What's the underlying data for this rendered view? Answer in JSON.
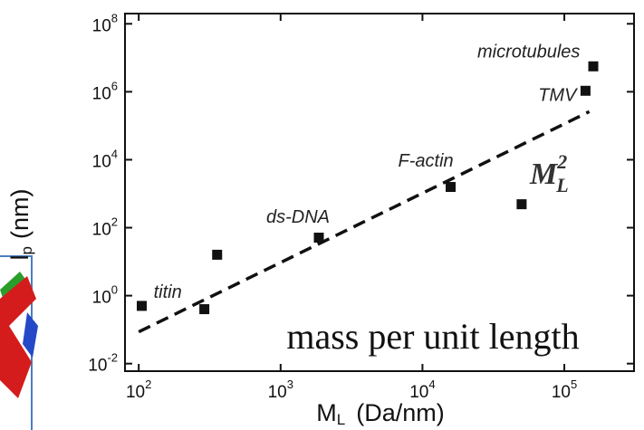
{
  "chart_data": {
    "type": "scatter",
    "log_x": true,
    "log_y": true,
    "color": "#111111",
    "xlim": [
      80,
      310000
    ],
    "ylim": [
      0.006,
      200000000
    ],
    "xticks": [
      {
        "value": 100,
        "label": "10",
        "exp": "2"
      },
      {
        "value": 1000,
        "label": "10",
        "exp": "3"
      },
      {
        "value": 10000,
        "label": "10",
        "exp": "4"
      },
      {
        "value": 100000,
        "label": "10",
        "exp": "5"
      }
    ],
    "yticks": [
      {
        "value": 0.01,
        "label": "10",
        "exp": "-2"
      },
      {
        "value": 1,
        "label": "10",
        "exp": "0"
      },
      {
        "value": 100,
        "label": "10",
        "exp": "2"
      },
      {
        "value": 10000,
        "label": "10",
        "exp": "4"
      },
      {
        "value": 1000000,
        "label": "10",
        "exp": "6"
      },
      {
        "value": 100000000,
        "label": "10",
        "exp": "8"
      }
    ],
    "xlabel": {
      "main": "M",
      "sub": "L",
      "unit": "(Da/nm)"
    },
    "ylabel": {
      "main": "l",
      "sub": "p",
      "unit": "(nm)"
    },
    "x": [
      105,
      290,
      357,
      1860,
      15800,
      50000,
      141000,
      160000
    ],
    "values": [
      0.5,
      0.4,
      16,
      51,
      1580,
      490,
      1070000,
      5600000
    ],
    "point_labels": [
      null,
      "titin",
      null,
      "ds-DNA",
      "F-actin",
      null,
      "TMV",
      "microtubules"
    ],
    "fit_line": {
      "x": [
        100,
        150000
      ],
      "values": [
        0.086,
        260000
      ]
    },
    "formula": {
      "main": "M",
      "sub": "L",
      "sup": "2"
    },
    "annotation": "mass per unit length"
  }
}
